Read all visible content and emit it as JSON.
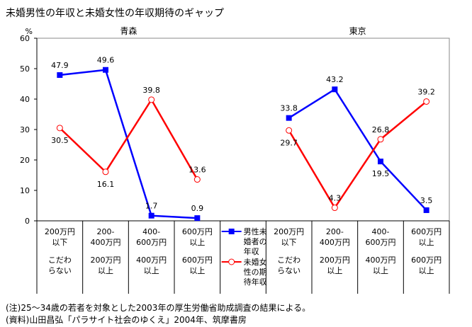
{
  "chart_data": {
    "type": "line",
    "title": "未婚男性の年収と未婚女性の年収期待のギャップ",
    "ylabel": "%",
    "ylim": [
      0,
      60
    ],
    "yticks": [
      0,
      10,
      20,
      30,
      40,
      50,
      60
    ],
    "ytick_labels": [
      "0",
      "10",
      "20",
      "30",
      "40",
      "50",
      "60"
    ],
    "panels": [
      {
        "name": "青森",
        "categories": [
          [
            "200万円",
            "以下",
            "こだわ",
            "らない"
          ],
          [
            "200-",
            "400万円",
            "200万円",
            "以上"
          ],
          [
            "400-",
            "600万円",
            "400万円",
            "以上"
          ],
          [
            "600万円",
            "以上",
            "600万円",
            "以上"
          ]
        ],
        "series": [
          {
            "name": "男性未婚者の年収",
            "values": [
              47.9,
              49.6,
              1.7,
              0.9
            ],
            "labels": [
              "47.9",
              "49.6",
              "1.7",
              "0.9"
            ]
          },
          {
            "name": "未婚女性の期待年収",
            "values": [
              30.5,
              16.1,
              39.8,
              13.6
            ],
            "labels": [
              "30.5",
              "16.1",
              "39.8",
              "13.6"
            ]
          }
        ]
      },
      {
        "name": "東京",
        "categories": [
          [
            "200万円",
            "以下",
            "こだわ",
            "らない"
          ],
          [
            "200-",
            "400万円",
            "200万円",
            "以上"
          ],
          [
            "400-",
            "600万円",
            "400万円",
            "以上"
          ],
          [
            "600万円",
            "以上",
            "600万円",
            "以上"
          ]
        ],
        "series": [
          {
            "name": "男性未婚者の年収",
            "values": [
              33.8,
              43.2,
              19.5,
              3.5
            ],
            "labels": [
              "33.8",
              "43.2",
              "19.5",
              "3.5"
            ]
          },
          {
            "name": "未婚女性の期待年収",
            "values": [
              29.7,
              4.3,
              26.8,
              39.2
            ],
            "labels": [
              "29.7",
              "4.3",
              "26.8",
              "39.2"
            ]
          }
        ]
      }
    ],
    "legend": [
      {
        "lines": [
          "男性未",
          "婚者の",
          "年収"
        ],
        "color": "#0000ff",
        "marker": "square"
      },
      {
        "lines": [
          "未婚女",
          "性の期",
          "待年収"
        ],
        "color": "#ff0000",
        "marker": "circle"
      }
    ],
    "legend_placement": "bottom-center"
  },
  "notes": [
    "(注)25～34歳の若者を対象とした2003年の厚生労働省助成調査の結果による。",
    "(資料)山田昌弘「パラサイト社会のゆくえ」2004年、筑摩書房"
  ]
}
